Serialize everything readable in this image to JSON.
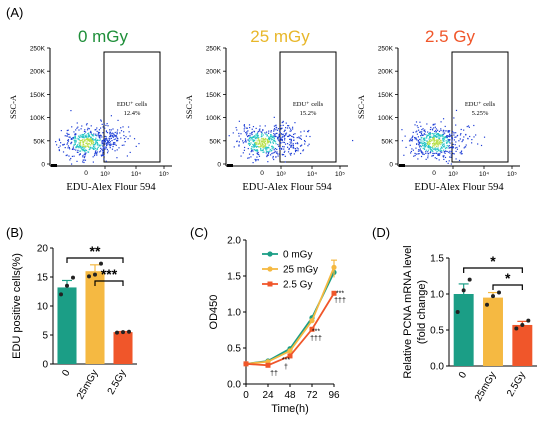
{
  "colors": {
    "control": "#1b9e86",
    "low_dose": "#f5b942",
    "high_dose": "#f0562a",
    "title_green": "#1f8f3a",
    "title_gold": "#e8b72a",
    "title_red": "#f0562a",
    "density_low": "#1f3fd6",
    "density_mid": "#23c4c4",
    "density_high": "#b8e04a"
  },
  "panel_labels": {
    "a": "(A)",
    "b": "(B)",
    "c": "(C)",
    "d": "(D)"
  },
  "flow": {
    "ylabel": "SSC-A",
    "xlabel": "EDU-Alex Flour 594",
    "gate_label": "EDU⁺ cells",
    "y_ticks": [
      "250K",
      "200K",
      "150K",
      "100K",
      "50K",
      "0"
    ],
    "x_ticks": [
      "10³",
      "10⁴",
      "10⁵"
    ],
    "x_tick_zero": "0",
    "plots": [
      {
        "title": "0 mGy",
        "gate_percent": "12.4%"
      },
      {
        "title": "25 mGy",
        "gate_percent": "15.2%"
      },
      {
        "title": "2.5 Gy",
        "gate_percent": "5.25%"
      }
    ]
  },
  "chart_data": [
    {
      "panel": "B",
      "type": "bar",
      "ylabel": "EDU positive cells(%)",
      "categories": [
        "0",
        "25mGy",
        "2.5Gy"
      ],
      "values": [
        13.2,
        16.0,
        5.5
      ],
      "errors": [
        1.2,
        1.1,
        0.1
      ],
      "points": [
        [
          12.0,
          13.5,
          14.9
        ],
        [
          15.1,
          15.4,
          17.3
        ],
        [
          5.4,
          5.5,
          5.55
        ]
      ],
      "ylim": [
        0,
        20
      ],
      "y_ticks": [
        "0",
        "5",
        "10",
        "15",
        "20"
      ],
      "significance": [
        {
          "from": "0",
          "to": "2.5Gy",
          "label": "**"
        },
        {
          "from": "25mGy",
          "to": "2.5Gy",
          "label": "***"
        }
      ]
    },
    {
      "panel": "C",
      "type": "line",
      "xlabel": "Time(h)",
      "ylabel": "OD450",
      "x": [
        0,
        24,
        48,
        72,
        96
      ],
      "x_ticks": [
        "0",
        "24",
        "48",
        "72",
        "96"
      ],
      "y_ticks": [
        "0.0",
        "0.5",
        "1.0",
        "1.5",
        "2.0"
      ],
      "xlim": [
        0,
        96
      ],
      "ylim": [
        0,
        2.0
      ],
      "series": [
        {
          "name": "0 mGy",
          "values": [
            0.28,
            0.32,
            0.49,
            0.92,
            1.55
          ]
        },
        {
          "name": "25 mGy",
          "values": [
            0.28,
            0.31,
            0.46,
            0.88,
            1.62
          ]
        },
        {
          "name": "2.5 Gy",
          "values": [
            0.28,
            0.26,
            0.39,
            0.76,
            1.26
          ]
        }
      ],
      "annotations": [
        {
          "x": 24,
          "lines": [
            "††"
          ]
        },
        {
          "x": 48,
          "lines": [
            "***",
            "†"
          ]
        },
        {
          "x": 72,
          "lines": [
            "***",
            "†††"
          ]
        },
        {
          "x": 96,
          "lines": [
            "***",
            "†††"
          ]
        }
      ]
    },
    {
      "panel": "D",
      "type": "bar",
      "ylabel": "Relative PCNA mRNA level",
      "ylabel2": "(fold change)",
      "categories": [
        "0",
        "25mGy",
        "2.5Gy"
      ],
      "values": [
        1.0,
        0.95,
        0.57
      ],
      "errors": [
        0.14,
        0.07,
        0.05
      ],
      "points": [
        [
          0.75,
          1.05,
          1.2
        ],
        [
          0.85,
          0.97,
          1.02
        ],
        [
          0.52,
          0.57,
          0.63
        ]
      ],
      "ylim": [
        0,
        1.5
      ],
      "y_ticks": [
        "0.0",
        "0.5",
        "1.0",
        "1.5"
      ],
      "significance": [
        {
          "from": "0",
          "to": "2.5Gy",
          "label": "*"
        },
        {
          "from": "25mGy",
          "to": "2.5Gy",
          "label": "*"
        }
      ]
    }
  ]
}
